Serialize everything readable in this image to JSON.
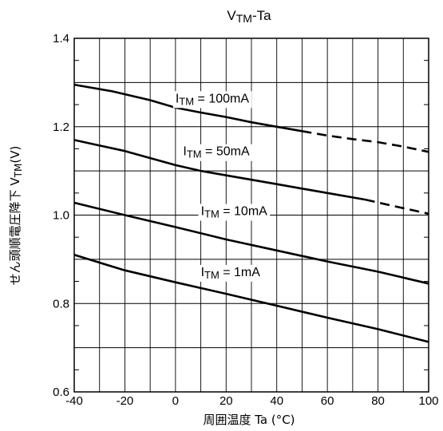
{
  "chart_data": {
    "type": "line",
    "title": {
      "main": "V",
      "sub": "TM",
      "suffix": "-Ta"
    },
    "xlabel": "周囲温度  Ta (°C)",
    "ylabel": {
      "main": "せん頭順電圧降下 V",
      "sub": "TM",
      "suffix": "(V)"
    },
    "xlim": [
      -40,
      100
    ],
    "ylim": [
      0.6,
      1.4
    ],
    "xticks": [
      -40,
      -20,
      0,
      20,
      40,
      60,
      80,
      100
    ],
    "yticks": [
      0.6,
      0.8,
      1.0,
      1.2,
      1.4
    ],
    "ytick_labels": [
      "0.6",
      "0.8",
      "1.0",
      "1.2",
      "1.4"
    ],
    "grid": true,
    "series": [
      {
        "name": "100mA",
        "label": {
          "main": "I",
          "sub": "TM",
          "suffix": " = 100mA"
        },
        "solid": {
          "x": [
            -40,
            -25,
            -10,
            0,
            10,
            20,
            30,
            40,
            50
          ],
          "y": [
            1.295,
            1.28,
            1.26,
            1.243,
            1.232,
            1.222,
            1.21,
            1.2,
            1.19
          ]
        },
        "dashed": {
          "x": [
            50,
            60,
            70,
            80,
            90,
            100
          ],
          "y": [
            1.19,
            1.18,
            1.172,
            1.165,
            1.155,
            1.143
          ]
        }
      },
      {
        "name": "50mA",
        "label": {
          "main": "I",
          "sub": "TM",
          "suffix": " = 50mA"
        },
        "solid": {
          "x": [
            -40,
            -20,
            0,
            10,
            20,
            30,
            40,
            50,
            60,
            75
          ],
          "y": [
            1.17,
            1.145,
            1.113,
            1.1,
            1.09,
            1.08,
            1.07,
            1.06,
            1.05,
            1.035
          ]
        },
        "dashed": {
          "x": [
            75,
            85,
            100
          ],
          "y": [
            1.035,
            1.022,
            1.003
          ]
        }
      },
      {
        "name": "10mA",
        "label": {
          "main": "I",
          "sub": "TM",
          "suffix": " = 10mA"
        },
        "solid": {
          "x": [
            -40,
            -20,
            0,
            20,
            40,
            60,
            80,
            100
          ],
          "y": [
            1.028,
            1.0,
            0.973,
            0.945,
            0.92,
            0.895,
            0.872,
            0.845
          ]
        }
      },
      {
        "name": "1mA",
        "label": {
          "main": "I",
          "sub": "TM",
          "suffix": " = 1mA"
        },
        "solid": {
          "x": [
            -40,
            -20,
            0,
            20,
            40,
            60,
            80,
            100
          ],
          "y": [
            0.91,
            0.875,
            0.848,
            0.822,
            0.795,
            0.768,
            0.742,
            0.713
          ]
        }
      }
    ]
  }
}
